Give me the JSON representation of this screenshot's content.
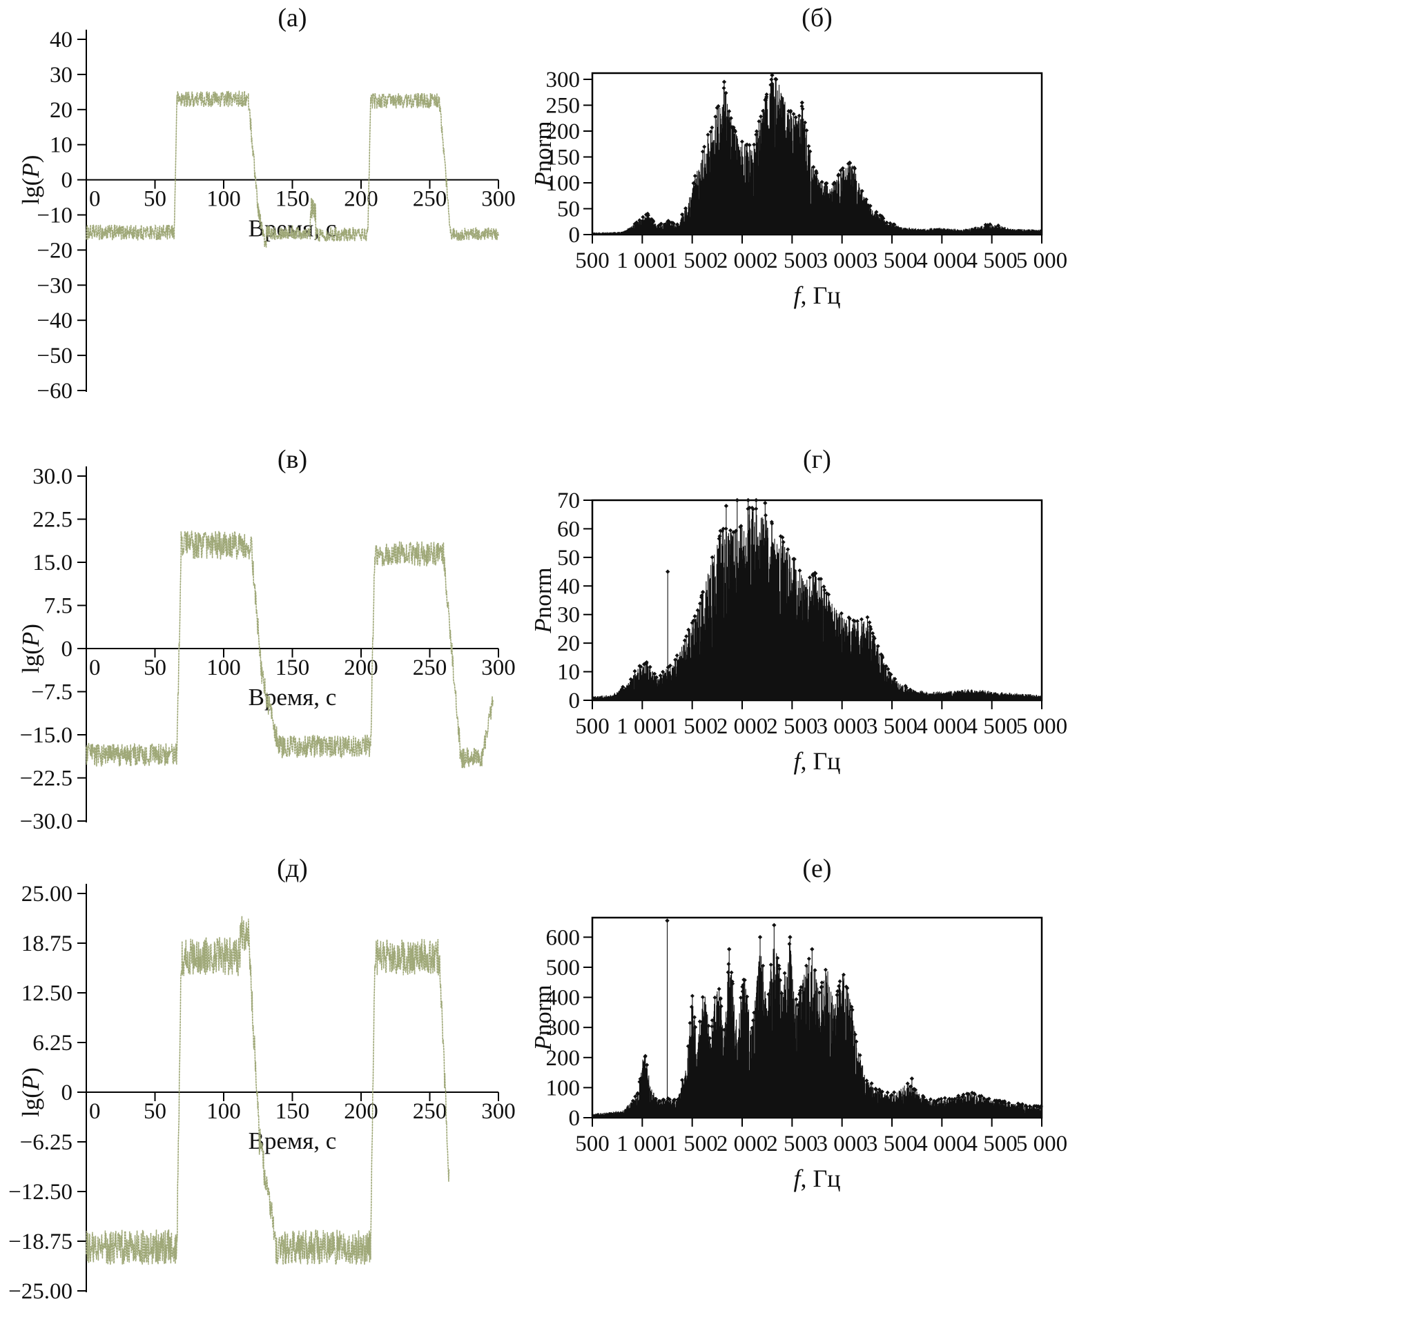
{
  "figure": {
    "panel_titles": [
      "(а)",
      "(б)",
      "(в)",
      "(г)",
      "(д)",
      "(е)"
    ]
  },
  "colors": {
    "signal": "#9fa878",
    "spectrum": "#111111",
    "axis": "#000000"
  },
  "chart_data": [
    {
      "id": "a",
      "type": "line",
      "title": "(а)",
      "xlabel": "Время, с",
      "ylabel": "lg(P)",
      "xlim": [
        0,
        300
      ],
      "ylim": [
        -60,
        40
      ],
      "xticks": {
        "values": [
          0,
          50,
          100,
          150,
          200,
          250,
          300
        ],
        "labels": [
          "0",
          "50",
          "100",
          "150",
          "200",
          "250",
          "300"
        ]
      },
      "yticks": {
        "values": [
          40,
          30,
          20,
          10,
          0,
          -10,
          -20,
          -30,
          -40,
          -50,
          -60
        ],
        "labels": [
          "40",
          "30",
          "20",
          "10",
          "0",
          "−10",
          "−20",
          "−30",
          "−40",
          "−50",
          "−60"
        ]
      },
      "xlabel_parts": [
        {
          "t": "Время, с",
          "i": false
        }
      ],
      "ylabel_parts": [
        {
          "t": "lg(",
          "i": false
        },
        {
          "t": "P",
          "i": true
        },
        {
          "t": ")",
          "i": false
        }
      ],
      "signal_segments": [
        {
          "t0": 0,
          "t1": 64,
          "level": -15,
          "noise": 2.2
        },
        {
          "t0": 64,
          "t1": 66,
          "from": -15,
          "to": 23,
          "noise": 1.5
        },
        {
          "t0": 66,
          "t1": 118,
          "level": 23,
          "noise": 2.3
        },
        {
          "t0": 118,
          "t1": 125,
          "from": 23,
          "to": -8,
          "noise": 2.5
        },
        {
          "t0": 125,
          "t1": 131,
          "from": -8,
          "to": -20,
          "noise": 2.0
        },
        {
          "t0": 131,
          "t1": 163,
          "level": -15,
          "noise": 2.0
        },
        {
          "t0": 163,
          "t1": 167,
          "level": -9,
          "noise": 4.0
        },
        {
          "t0": 167,
          "t1": 205,
          "level": -15.5,
          "noise": 2.0
        },
        {
          "t0": 205,
          "t1": 207,
          "from": -15.5,
          "to": 23,
          "noise": 1.5
        },
        {
          "t0": 207,
          "t1": 257,
          "level": 22.5,
          "noise": 2.2
        },
        {
          "t0": 257,
          "t1": 265,
          "from": 22.5,
          "to": -14,
          "noise": 2.0
        },
        {
          "t0": 265,
          "t1": 300,
          "level": -15.5,
          "noise": 1.8
        }
      ]
    },
    {
      "id": "b",
      "type": "stem",
      "title": "(б)",
      "xlabel": "f, Гц",
      "ylabel": "Pnorm",
      "xlim": [
        500,
        5000
      ],
      "ylim": [
        0,
        300
      ],
      "xticks": {
        "values": [
          500,
          1000,
          1500,
          2000,
          2500,
          3000,
          3500,
          4000,
          4500,
          5000
        ],
        "labels": [
          "500",
          "1 000",
          "1 500",
          "2 000",
          "2 500",
          "3 000",
          "3 500",
          "4 000",
          "4 500",
          "5 000"
        ]
      },
      "yticks": {
        "values": [
          300,
          250,
          200,
          150,
          100,
          50,
          0
        ],
        "labels": [
          "300",
          "250",
          "200",
          "150",
          "100",
          "50",
          "0"
        ]
      },
      "xlabel_parts": [
        {
          "t": "f",
          "i": true
        },
        {
          "t": ", Гц",
          "i": false
        }
      ],
      "ylabel_parts": [
        {
          "t": "P",
          "i": true
        },
        {
          "t": "norm",
          "i": false
        }
      ],
      "noise_floor": 3,
      "envelope": [
        [
          500,
          4
        ],
        [
          800,
          6
        ],
        [
          950,
          25
        ],
        [
          1050,
          42
        ],
        [
          1150,
          18
        ],
        [
          1250,
          28
        ],
        [
          1350,
          20
        ],
        [
          1450,
          60
        ],
        [
          1550,
          130
        ],
        [
          1650,
          190
        ],
        [
          1750,
          240
        ],
        [
          1820,
          295
        ],
        [
          1900,
          215
        ],
        [
          2000,
          185
        ],
        [
          2100,
          170
        ],
        [
          2200,
          240
        ],
        [
          2300,
          308
        ],
        [
          2380,
          300
        ],
        [
          2450,
          250
        ],
        [
          2550,
          230
        ],
        [
          2600,
          255
        ],
        [
          2700,
          140
        ],
        [
          2800,
          105
        ],
        [
          2900,
          95
        ],
        [
          3000,
          130
        ],
        [
          3100,
          145
        ],
        [
          3200,
          85
        ],
        [
          3300,
          55
        ],
        [
          3450,
          25
        ],
        [
          3600,
          15
        ],
        [
          3800,
          12
        ],
        [
          4000,
          14
        ],
        [
          4200,
          10
        ],
        [
          4400,
          18
        ],
        [
          4500,
          22
        ],
        [
          4700,
          12
        ],
        [
          5000,
          10
        ]
      ],
      "spikes": [
        {
          "f": 1820,
          "a": 295
        },
        {
          "f": 2300,
          "a": 308
        },
        {
          "f": 2340,
          "a": 300
        },
        {
          "f": 2600,
          "a": 255
        },
        {
          "f": 1750,
          "a": 245
        }
      ]
    },
    {
      "id": "v",
      "type": "line",
      "title": "(в)",
      "xlabel": "Время, с",
      "ylabel": "lg(P)",
      "xlim": [
        0,
        300
      ],
      "ylim": [
        -30,
        30
      ],
      "xticks": {
        "values": [
          0,
          50,
          100,
          150,
          200,
          250,
          300
        ],
        "labels": [
          "0",
          "50",
          "100",
          "150",
          "200",
          "250",
          "300"
        ]
      },
      "yticks": {
        "values": [
          30,
          22.5,
          15,
          7.5,
          0,
          -7.5,
          -15,
          -22.5,
          -30
        ],
        "labels": [
          "30.0",
          "22.5",
          "15.0",
          "7.5",
          "0",
          "−7.5",
          "−15.0",
          "−22.5",
          "−30.0"
        ]
      },
      "xlabel_parts": [
        {
          "t": "Время, с",
          "i": false
        }
      ],
      "ylabel_parts": [
        {
          "t": "lg(",
          "i": false
        },
        {
          "t": "P",
          "i": true
        },
        {
          "t": ")",
          "i": false
        }
      ],
      "signal_segments": [
        {
          "t0": 0,
          "t1": 66,
          "level": -18.5,
          "noise": 2.0
        },
        {
          "t0": 66,
          "t1": 69,
          "from": -18.5,
          "to": 17,
          "noise": 2.0
        },
        {
          "t0": 69,
          "t1": 120,
          "level": 18,
          "noise": 2.5
        },
        {
          "t0": 120,
          "t1": 128,
          "from": 18,
          "to": -5,
          "noise": 2.0
        },
        {
          "t0": 128,
          "t1": 140,
          "from": -5,
          "to": -17,
          "noise": 2.0
        },
        {
          "t0": 140,
          "t1": 207,
          "level": -17,
          "noise": 2.0
        },
        {
          "t0": 207,
          "t1": 210,
          "from": -17,
          "to": 17,
          "noise": 2.0
        },
        {
          "t0": 210,
          "t1": 260,
          "level": 16.5,
          "noise": 2.2
        },
        {
          "t0": 260,
          "t1": 272,
          "from": 16.5,
          "to": -17,
          "noise": 2.0
        },
        {
          "t0": 272,
          "t1": 288,
          "level": -19,
          "noise": 1.8
        },
        {
          "t0": 288,
          "t1": 296,
          "from": -19,
          "to": -9,
          "noise": 1.5
        }
      ]
    },
    {
      "id": "g",
      "type": "stem",
      "title": "(г)",
      "xlabel": "f, Гц",
      "ylabel": "Pnorm",
      "xlim": [
        500,
        5000
      ],
      "ylim": [
        0,
        70
      ],
      "xticks": {
        "values": [
          500,
          1000,
          1500,
          2000,
          2500,
          3000,
          3500,
          4000,
          4500,
          5000
        ],
        "labels": [
          "500",
          "1 000",
          "1 500",
          "2 000",
          "2 500",
          "3 000",
          "3 500",
          "4 000",
          "4 500",
          "5 000"
        ]
      },
      "yticks": {
        "values": [
          70,
          60,
          50,
          40,
          30,
          20,
          10,
          0
        ],
        "labels": [
          "70",
          "60",
          "50",
          "40",
          "30",
          "20",
          "10",
          "0"
        ]
      },
      "xlabel_parts": [
        {
          "t": "f",
          "i": true
        },
        {
          "t": ", Гц",
          "i": false
        }
      ],
      "ylabel_parts": [
        {
          "t": "P",
          "i": true
        },
        {
          "t": "norm",
          "i": false
        }
      ],
      "noise_floor": 1.2,
      "envelope": [
        [
          500,
          1.5
        ],
        [
          700,
          2
        ],
        [
          850,
          6
        ],
        [
          950,
          12
        ],
        [
          1050,
          14
        ],
        [
          1150,
          8
        ],
        [
          1250,
          12
        ],
        [
          1350,
          16
        ],
        [
          1450,
          24
        ],
        [
          1550,
          32
        ],
        [
          1650,
          45
        ],
        [
          1750,
          58
        ],
        [
          1850,
          62
        ],
        [
          1950,
          60
        ],
        [
          2050,
          68
        ],
        [
          2150,
          70
        ],
        [
          2250,
          66
        ],
        [
          2350,
          60
        ],
        [
          2450,
          55
        ],
        [
          2550,
          48
        ],
        [
          2650,
          44
        ],
        [
          2750,
          46
        ],
        [
          2850,
          38
        ],
        [
          2950,
          33
        ],
        [
          3050,
          30
        ],
        [
          3150,
          28
        ],
        [
          3250,
          30
        ],
        [
          3350,
          20
        ],
        [
          3450,
          12
        ],
        [
          3550,
          7
        ],
        [
          3700,
          4
        ],
        [
          3900,
          3
        ],
        [
          4100,
          3.5
        ],
        [
          4300,
          4
        ],
        [
          4600,
          3
        ],
        [
          5000,
          2
        ]
      ],
      "spikes": [
        {
          "f": 1255,
          "a": 45
        },
        {
          "f": 1950,
          "a": 70
        },
        {
          "f": 2060,
          "a": 70
        },
        {
          "f": 2140,
          "a": 70
        },
        {
          "f": 2230,
          "a": 69
        },
        {
          "f": 1840,
          "a": 68
        }
      ]
    },
    {
      "id": "d",
      "type": "line",
      "title": "(д)",
      "xlabel": "Время, с",
      "ylabel": "lg(P)",
      "xlim": [
        0,
        300
      ],
      "ylim": [
        -25,
        25
      ],
      "xticks": {
        "values": [
          0,
          50,
          100,
          150,
          200,
          250,
          300
        ],
        "labels": [
          "0",
          "50",
          "100",
          "150",
          "200",
          "250",
          "300"
        ]
      },
      "yticks": {
        "values": [
          25,
          18.75,
          12.5,
          6.25,
          0,
          -6.25,
          -12.5,
          -18.75,
          -25
        ],
        "labels": [
          "25.00",
          "18.75",
          "12.50",
          "6.25",
          "0",
          "−6.25",
          "−12.50",
          "−18.75",
          "−25.00"
        ]
      },
      "xlabel_parts": [
        {
          "t": "Время, с",
          "i": false
        }
      ],
      "ylabel_parts": [
        {
          "t": "lg(",
          "i": false
        },
        {
          "t": "P",
          "i": true
        },
        {
          "t": ")",
          "i": false
        }
      ],
      "signal_segments": [
        {
          "t0": 0,
          "t1": 66,
          "level": -19.5,
          "noise": 2.2
        },
        {
          "t0": 66,
          "t1": 69,
          "from": -19.5,
          "to": 16,
          "noise": 2.0
        },
        {
          "t0": 69,
          "t1": 112,
          "level": 17,
          "noise": 2.5
        },
        {
          "t0": 112,
          "t1": 118,
          "level": 20,
          "noise": 2.2
        },
        {
          "t0": 118,
          "t1": 126,
          "from": 20,
          "to": -6,
          "noise": 2.0
        },
        {
          "t0": 126,
          "t1": 138,
          "from": -6,
          "to": -19,
          "noise": 2.0
        },
        {
          "t0": 138,
          "t1": 207,
          "level": -19.5,
          "noise": 2.2
        },
        {
          "t0": 207,
          "t1": 210,
          "from": -19.5,
          "to": 17,
          "noise": 1.5
        },
        {
          "t0": 210,
          "t1": 257,
          "level": 17,
          "noise": 2.3
        },
        {
          "t0": 257,
          "t1": 264,
          "from": 17,
          "to": -11,
          "noise": 1.5
        }
      ]
    },
    {
      "id": "e",
      "type": "stem",
      "title": "(е)",
      "xlabel": "f, Гц",
      "ylabel": "Pnorm",
      "xlim": [
        500,
        5000
      ],
      "ylim": [
        0,
        600
      ],
      "xticks": {
        "values": [
          500,
          1000,
          1500,
          2000,
          2500,
          3000,
          3500,
          4000,
          4500,
          5000
        ],
        "labels": [
          "500",
          "1 000",
          "1 500",
          "2 000",
          "2 500",
          "3 000",
          "3 500",
          "4 000",
          "4 500",
          "5 000"
        ]
      },
      "yticks": {
        "values": [
          600,
          500,
          400,
          300,
          200,
          100,
          0
        ],
        "labels": [
          "600",
          "500",
          "400",
          "300",
          "200",
          "100",
          "0"
        ]
      },
      "xlabel_parts": [
        {
          "t": "f",
          "i": true
        },
        {
          "t": ", Гц",
          "i": false
        }
      ],
      "ylabel_parts": [
        {
          "t": "P",
          "i": true
        },
        {
          "t": "norm",
          "i": false
        }
      ],
      "noise_floor": 12,
      "envelope": [
        [
          500,
          15
        ],
        [
          800,
          25
        ],
        [
          950,
          80
        ],
        [
          1020,
          230
        ],
        [
          1080,
          120
        ],
        [
          1150,
          60
        ],
        [
          1250,
          70
        ],
        [
          1350,
          60
        ],
        [
          1450,
          200
        ],
        [
          1500,
          420
        ],
        [
          1550,
          240
        ],
        [
          1620,
          460
        ],
        [
          1680,
          260
        ],
        [
          1750,
          500
        ],
        [
          1820,
          300
        ],
        [
          1870,
          560
        ],
        [
          1950,
          320
        ],
        [
          2020,
          480
        ],
        [
          2100,
          300
        ],
        [
          2180,
          600
        ],
        [
          2250,
          380
        ],
        [
          2320,
          640
        ],
        [
          2400,
          420
        ],
        [
          2480,
          600
        ],
        [
          2550,
          380
        ],
        [
          2620,
          500
        ],
        [
          2700,
          560
        ],
        [
          2780,
          420
        ],
        [
          2850,
          540
        ],
        [
          2920,
          380
        ],
        [
          3000,
          500
        ],
        [
          3080,
          420
        ],
        [
          3150,
          250
        ],
        [
          3250,
          130
        ],
        [
          3350,
          100
        ],
        [
          3500,
          80
        ],
        [
          3650,
          120
        ],
        [
          3750,
          90
        ],
        [
          3900,
          60
        ],
        [
          4100,
          70
        ],
        [
          4300,
          85
        ],
        [
          4500,
          65
        ],
        [
          4700,
          50
        ],
        [
          5000,
          40
        ]
      ],
      "spikes": [
        {
          "f": 1250,
          "a": 655
        },
        {
          "f": 2320,
          "a": 640
        },
        {
          "f": 2180,
          "a": 600
        },
        {
          "f": 1870,
          "a": 560
        },
        {
          "f": 2480,
          "a": 600
        },
        {
          "f": 2700,
          "a": 560
        },
        {
          "f": 3700,
          "a": 130
        }
      ]
    }
  ]
}
